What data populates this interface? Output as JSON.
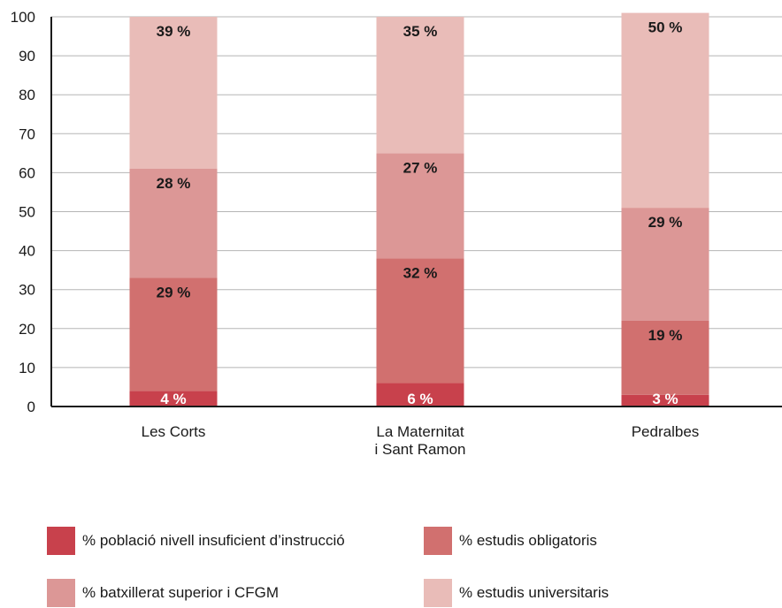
{
  "chart_data": {
    "type": "bar",
    "stacked": true,
    "categories": [
      [
        "Les Corts"
      ],
      [
        "La Maternitat",
        "i Sant Ramon"
      ],
      [
        "Pedralbes"
      ]
    ],
    "series": [
      {
        "name": "% població nivell insuficient d’instrucció",
        "values": [
          4,
          6,
          3
        ],
        "labels": [
          "4 %",
          "6 %",
          "3 %"
        ],
        "color": "#c8414c",
        "label_color": "#ffffff"
      },
      {
        "name": "% estudis obligatoris",
        "values": [
          29,
          32,
          19
        ],
        "labels": [
          "29 %",
          "32 %",
          "19 %"
        ],
        "color": "#d1706f",
        "label_color": "#1a1a1a"
      },
      {
        "name": "% batxillerat superior i CFGM",
        "values": [
          28,
          27,
          29
        ],
        "labels": [
          "28 %",
          "27 %",
          "29 %"
        ],
        "color": "#dc9796",
        "label_color": "#1a1a1a"
      },
      {
        "name": "% estudis universitaris",
        "values": [
          39,
          35,
          50
        ],
        "labels": [
          "39 %",
          "35 %",
          "50 %"
        ],
        "color": "#e9bcb8",
        "label_color": "#1a1a1a"
      }
    ],
    "y_ticks": [
      0,
      10,
      20,
      30,
      40,
      50,
      60,
      70,
      80,
      90,
      100
    ],
    "ylim": [
      0,
      100
    ],
    "grid": true,
    "legend_position": "bottom"
  }
}
